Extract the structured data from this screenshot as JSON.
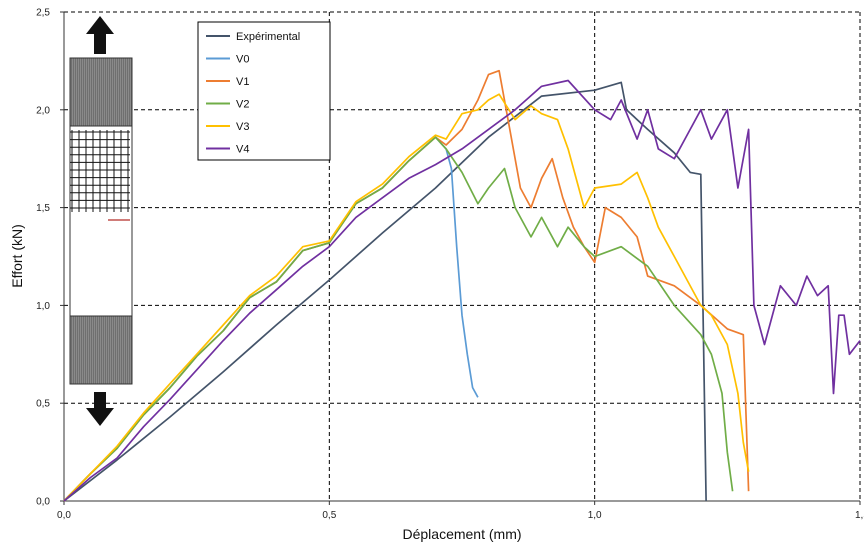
{
  "chart_data": {
    "type": "line",
    "title": "",
    "xlabel": "Déplacement (mm)",
    "ylabel": "Effort (kN)",
    "xlim": [
      0,
      1.5
    ],
    "ylim": [
      0,
      2.5
    ],
    "x_ticks": [
      "0,0",
      "0,5",
      "1,0",
      "1,5"
    ],
    "y_ticks": [
      "0,0",
      "0,5",
      "1,0",
      "1,5",
      "2,0",
      "2,5"
    ],
    "grid": "dashed",
    "legend_position": "top-left",
    "series": [
      {
        "name": "Expérimental",
        "color": "#44546a",
        "points": [
          [
            0,
            0
          ],
          [
            0.1,
            0.21
          ],
          [
            0.2,
            0.43
          ],
          [
            0.3,
            0.66
          ],
          [
            0.4,
            0.9
          ],
          [
            0.5,
            1.13
          ],
          [
            0.6,
            1.37
          ],
          [
            0.7,
            1.6
          ],
          [
            0.8,
            1.86
          ],
          [
            0.9,
            2.07
          ],
          [
            1.0,
            2.1
          ],
          [
            1.05,
            2.14
          ],
          [
            1.06,
            2.0
          ],
          [
            1.1,
            1.9
          ],
          [
            1.15,
            1.78
          ],
          [
            1.18,
            1.68
          ],
          [
            1.2,
            1.67
          ],
          [
            1.21,
            0.0
          ]
        ]
      },
      {
        "name": "V0",
        "color": "#5b9bd5",
        "points": [
          [
            0,
            0
          ],
          [
            0.05,
            0.14
          ],
          [
            0.1,
            0.27
          ],
          [
            0.15,
            0.44
          ],
          [
            0.2,
            0.58
          ],
          [
            0.25,
            0.74
          ],
          [
            0.3,
            0.87
          ],
          [
            0.35,
            1.04
          ],
          [
            0.4,
            1.12
          ],
          [
            0.45,
            1.28
          ],
          [
            0.5,
            1.32
          ],
          [
            0.55,
            1.52
          ],
          [
            0.6,
            1.6
          ],
          [
            0.65,
            1.74
          ],
          [
            0.7,
            1.86
          ],
          [
            0.72,
            1.8
          ],
          [
            0.73,
            1.7
          ],
          [
            0.74,
            1.3
          ],
          [
            0.75,
            0.95
          ],
          [
            0.76,
            0.75
          ],
          [
            0.77,
            0.58
          ],
          [
            0.78,
            0.53
          ]
        ]
      },
      {
        "name": "V1",
        "color": "#ed7d31",
        "points": [
          [
            0,
            0
          ],
          [
            0.05,
            0.14
          ],
          [
            0.1,
            0.27
          ],
          [
            0.15,
            0.44
          ],
          [
            0.2,
            0.58
          ],
          [
            0.25,
            0.74
          ],
          [
            0.3,
            0.87
          ],
          [
            0.35,
            1.04
          ],
          [
            0.4,
            1.12
          ],
          [
            0.45,
            1.28
          ],
          [
            0.5,
            1.32
          ],
          [
            0.55,
            1.52
          ],
          [
            0.6,
            1.6
          ],
          [
            0.65,
            1.74
          ],
          [
            0.7,
            1.86
          ],
          [
            0.72,
            1.82
          ],
          [
            0.75,
            1.9
          ],
          [
            0.78,
            2.05
          ],
          [
            0.8,
            2.18
          ],
          [
            0.82,
            2.2
          ],
          [
            0.84,
            1.9
          ],
          [
            0.86,
            1.6
          ],
          [
            0.88,
            1.5
          ],
          [
            0.9,
            1.65
          ],
          [
            0.92,
            1.75
          ],
          [
            0.94,
            1.55
          ],
          [
            0.96,
            1.4
          ],
          [
            0.98,
            1.3
          ],
          [
            1.0,
            1.22
          ],
          [
            1.02,
            1.5
          ],
          [
            1.05,
            1.45
          ],
          [
            1.08,
            1.35
          ],
          [
            1.1,
            1.15
          ],
          [
            1.15,
            1.1
          ],
          [
            1.2,
            1.0
          ],
          [
            1.25,
            0.88
          ],
          [
            1.28,
            0.85
          ],
          [
            1.29,
            0.05
          ]
        ]
      },
      {
        "name": "V2",
        "color": "#70ad47",
        "points": [
          [
            0,
            0
          ],
          [
            0.05,
            0.14
          ],
          [
            0.1,
            0.27
          ],
          [
            0.15,
            0.44
          ],
          [
            0.2,
            0.58
          ],
          [
            0.25,
            0.74
          ],
          [
            0.3,
            0.87
          ],
          [
            0.35,
            1.04
          ],
          [
            0.4,
            1.12
          ],
          [
            0.45,
            1.28
          ],
          [
            0.5,
            1.32
          ],
          [
            0.55,
            1.52
          ],
          [
            0.6,
            1.6
          ],
          [
            0.65,
            1.74
          ],
          [
            0.7,
            1.86
          ],
          [
            0.72,
            1.8
          ],
          [
            0.75,
            1.68
          ],
          [
            0.78,
            1.52
          ],
          [
            0.8,
            1.6
          ],
          [
            0.83,
            1.7
          ],
          [
            0.85,
            1.5
          ],
          [
            0.88,
            1.35
          ],
          [
            0.9,
            1.45
          ],
          [
            0.93,
            1.3
          ],
          [
            0.95,
            1.4
          ],
          [
            0.98,
            1.3
          ],
          [
            1.0,
            1.25
          ],
          [
            1.05,
            1.3
          ],
          [
            1.1,
            1.2
          ],
          [
            1.15,
            1.0
          ],
          [
            1.2,
            0.85
          ],
          [
            1.22,
            0.75
          ],
          [
            1.24,
            0.55
          ],
          [
            1.25,
            0.25
          ],
          [
            1.26,
            0.05
          ]
        ]
      },
      {
        "name": "V3",
        "color": "#ffc000",
        "points": [
          [
            0,
            0
          ],
          [
            0.05,
            0.14
          ],
          [
            0.1,
            0.28
          ],
          [
            0.15,
            0.45
          ],
          [
            0.2,
            0.6
          ],
          [
            0.25,
            0.75
          ],
          [
            0.3,
            0.9
          ],
          [
            0.35,
            1.05
          ],
          [
            0.4,
            1.15
          ],
          [
            0.45,
            1.3
          ],
          [
            0.5,
            1.33
          ],
          [
            0.55,
            1.53
          ],
          [
            0.6,
            1.62
          ],
          [
            0.65,
            1.76
          ],
          [
            0.7,
            1.87
          ],
          [
            0.72,
            1.85
          ],
          [
            0.75,
            1.98
          ],
          [
            0.78,
            2.0
          ],
          [
            0.8,
            2.05
          ],
          [
            0.82,
            2.08
          ],
          [
            0.85,
            1.95
          ],
          [
            0.88,
            2.02
          ],
          [
            0.9,
            1.98
          ],
          [
            0.93,
            1.95
          ],
          [
            0.95,
            1.8
          ],
          [
            0.98,
            1.5
          ],
          [
            1.0,
            1.6
          ],
          [
            1.05,
            1.62
          ],
          [
            1.08,
            1.68
          ],
          [
            1.1,
            1.55
          ],
          [
            1.12,
            1.4
          ],
          [
            1.15,
            1.25
          ],
          [
            1.2,
            1.0
          ],
          [
            1.22,
            0.95
          ],
          [
            1.25,
            0.8
          ],
          [
            1.27,
            0.55
          ],
          [
            1.28,
            0.3
          ],
          [
            1.29,
            0.15
          ]
        ]
      },
      {
        "name": "V4",
        "color": "#7030a0",
        "points": [
          [
            0,
            0
          ],
          [
            0.05,
            0.12
          ],
          [
            0.1,
            0.22
          ],
          [
            0.15,
            0.38
          ],
          [
            0.2,
            0.52
          ],
          [
            0.25,
            0.67
          ],
          [
            0.3,
            0.82
          ],
          [
            0.35,
            0.96
          ],
          [
            0.4,
            1.08
          ],
          [
            0.45,
            1.2
          ],
          [
            0.5,
            1.3
          ],
          [
            0.55,
            1.45
          ],
          [
            0.6,
            1.55
          ],
          [
            0.65,
            1.65
          ],
          [
            0.7,
            1.72
          ],
          [
            0.75,
            1.8
          ],
          [
            0.8,
            1.9
          ],
          [
            0.85,
            2.0
          ],
          [
            0.9,
            2.12
          ],
          [
            0.95,
            2.15
          ],
          [
            1.0,
            2.0
          ],
          [
            1.03,
            1.95
          ],
          [
            1.05,
            2.05
          ],
          [
            1.08,
            1.85
          ],
          [
            1.1,
            2.0
          ],
          [
            1.12,
            1.8
          ],
          [
            1.15,
            1.75
          ],
          [
            1.18,
            1.9
          ],
          [
            1.2,
            2.0
          ],
          [
            1.22,
            1.85
          ],
          [
            1.25,
            2.0
          ],
          [
            1.27,
            1.6
          ],
          [
            1.29,
            1.9
          ],
          [
            1.3,
            1.0
          ],
          [
            1.32,
            0.8
          ],
          [
            1.35,
            1.1
          ],
          [
            1.38,
            1.0
          ],
          [
            1.4,
            1.15
          ],
          [
            1.42,
            1.05
          ],
          [
            1.44,
            1.1
          ],
          [
            1.45,
            0.55
          ],
          [
            1.46,
            0.95
          ],
          [
            1.47,
            0.95
          ],
          [
            1.48,
            0.75
          ],
          [
            1.5,
            0.82
          ]
        ]
      }
    ]
  }
}
